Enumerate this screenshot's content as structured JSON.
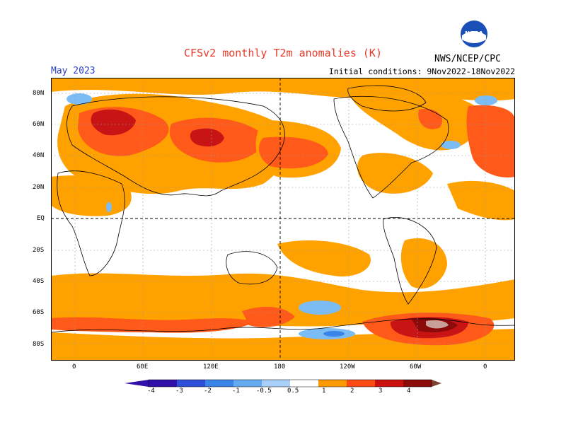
{
  "title": "CFSv2 monthly T2m anomalies (K)",
  "month": "May 2023",
  "initial_conditions": "Initial conditions: 9Nov2022-18Nov2022",
  "organization": "NWS/NCEP/CPC",
  "logo_text": "NOAA",
  "logo_icon": "noaa-logo-icon",
  "lat_labels": [
    "80N",
    "60N",
    "40N",
    "20N",
    "EQ",
    "20S",
    "40S",
    "60S",
    "80S"
  ],
  "lon_labels": [
    "0",
    "60E",
    "120E",
    "180",
    "120W",
    "60W",
    "0"
  ],
  "colorbar": {
    "labels": [
      "-4",
      "-3",
      "-2",
      "-1",
      "-0.5",
      "0.5",
      "1",
      "2",
      "3",
      "4"
    ],
    "colors": [
      "#3010a8",
      "#2f4fd8",
      "#3a84e8",
      "#63aaf0",
      "#a8d0f8",
      "#ffffff",
      "#ff9900",
      "#ff4a14",
      "#cc1010",
      "#8c0a0a",
      "#c8a098",
      "#7a4030"
    ]
  },
  "colors": {
    "title": "#e8392a",
    "month": "#2a3fc0",
    "light_warm": "#ffa200",
    "warm": "#ff5a1a",
    "hot": "#c81414",
    "very_hot": "#8c0a0a",
    "extreme": "#c8a098",
    "cool": "#7bbcf5",
    "cold": "#3a84e8"
  }
}
